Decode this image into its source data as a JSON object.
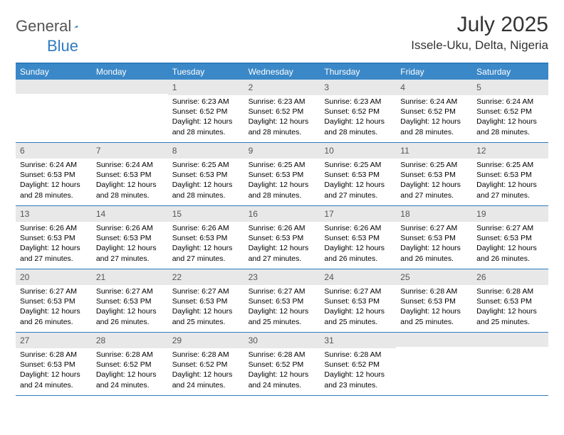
{
  "brand": {
    "general": "General",
    "blue": "Blue"
  },
  "title": "July 2025",
  "location": "Issele-Uku, Delta, Nigeria",
  "colors": {
    "header_bg": "#3b88c8",
    "border": "#2f7bbf",
    "daynum_bg": "#e8e8e8",
    "page_bg": "#ffffff",
    "text": "#000000",
    "title_color": "#333333",
    "logo_gray": "#545454",
    "logo_blue": "#2f7bbf"
  },
  "typography": {
    "title_fontsize": 30,
    "location_fontsize": 17,
    "dayheader_fontsize": 12,
    "cell_fontsize": 10.5
  },
  "dayNames": [
    "Sunday",
    "Monday",
    "Tuesday",
    "Wednesday",
    "Thursday",
    "Friday",
    "Saturday"
  ],
  "weeks": [
    [
      null,
      null,
      {
        "n": "1",
        "sr": "6:23 AM",
        "ss": "6:52 PM",
        "dl": "12 hours and 28 minutes."
      },
      {
        "n": "2",
        "sr": "6:23 AM",
        "ss": "6:52 PM",
        "dl": "12 hours and 28 minutes."
      },
      {
        "n": "3",
        "sr": "6:23 AM",
        "ss": "6:52 PM",
        "dl": "12 hours and 28 minutes."
      },
      {
        "n": "4",
        "sr": "6:24 AM",
        "ss": "6:52 PM",
        "dl": "12 hours and 28 minutes."
      },
      {
        "n": "5",
        "sr": "6:24 AM",
        "ss": "6:52 PM",
        "dl": "12 hours and 28 minutes."
      }
    ],
    [
      {
        "n": "6",
        "sr": "6:24 AM",
        "ss": "6:53 PM",
        "dl": "12 hours and 28 minutes."
      },
      {
        "n": "7",
        "sr": "6:24 AM",
        "ss": "6:53 PM",
        "dl": "12 hours and 28 minutes."
      },
      {
        "n": "8",
        "sr": "6:25 AM",
        "ss": "6:53 PM",
        "dl": "12 hours and 28 minutes."
      },
      {
        "n": "9",
        "sr": "6:25 AM",
        "ss": "6:53 PM",
        "dl": "12 hours and 28 minutes."
      },
      {
        "n": "10",
        "sr": "6:25 AM",
        "ss": "6:53 PM",
        "dl": "12 hours and 27 minutes."
      },
      {
        "n": "11",
        "sr": "6:25 AM",
        "ss": "6:53 PM",
        "dl": "12 hours and 27 minutes."
      },
      {
        "n": "12",
        "sr": "6:25 AM",
        "ss": "6:53 PM",
        "dl": "12 hours and 27 minutes."
      }
    ],
    [
      {
        "n": "13",
        "sr": "6:26 AM",
        "ss": "6:53 PM",
        "dl": "12 hours and 27 minutes."
      },
      {
        "n": "14",
        "sr": "6:26 AM",
        "ss": "6:53 PM",
        "dl": "12 hours and 27 minutes."
      },
      {
        "n": "15",
        "sr": "6:26 AM",
        "ss": "6:53 PM",
        "dl": "12 hours and 27 minutes."
      },
      {
        "n": "16",
        "sr": "6:26 AM",
        "ss": "6:53 PM",
        "dl": "12 hours and 27 minutes."
      },
      {
        "n": "17",
        "sr": "6:26 AM",
        "ss": "6:53 PM",
        "dl": "12 hours and 26 minutes."
      },
      {
        "n": "18",
        "sr": "6:27 AM",
        "ss": "6:53 PM",
        "dl": "12 hours and 26 minutes."
      },
      {
        "n": "19",
        "sr": "6:27 AM",
        "ss": "6:53 PM",
        "dl": "12 hours and 26 minutes."
      }
    ],
    [
      {
        "n": "20",
        "sr": "6:27 AM",
        "ss": "6:53 PM",
        "dl": "12 hours and 26 minutes."
      },
      {
        "n": "21",
        "sr": "6:27 AM",
        "ss": "6:53 PM",
        "dl": "12 hours and 26 minutes."
      },
      {
        "n": "22",
        "sr": "6:27 AM",
        "ss": "6:53 PM",
        "dl": "12 hours and 25 minutes."
      },
      {
        "n": "23",
        "sr": "6:27 AM",
        "ss": "6:53 PM",
        "dl": "12 hours and 25 minutes."
      },
      {
        "n": "24",
        "sr": "6:27 AM",
        "ss": "6:53 PM",
        "dl": "12 hours and 25 minutes."
      },
      {
        "n": "25",
        "sr": "6:28 AM",
        "ss": "6:53 PM",
        "dl": "12 hours and 25 minutes."
      },
      {
        "n": "26",
        "sr": "6:28 AM",
        "ss": "6:53 PM",
        "dl": "12 hours and 25 minutes."
      }
    ],
    [
      {
        "n": "27",
        "sr": "6:28 AM",
        "ss": "6:53 PM",
        "dl": "12 hours and 24 minutes."
      },
      {
        "n": "28",
        "sr": "6:28 AM",
        "ss": "6:52 PM",
        "dl": "12 hours and 24 minutes."
      },
      {
        "n": "29",
        "sr": "6:28 AM",
        "ss": "6:52 PM",
        "dl": "12 hours and 24 minutes."
      },
      {
        "n": "30",
        "sr": "6:28 AM",
        "ss": "6:52 PM",
        "dl": "12 hours and 24 minutes."
      },
      {
        "n": "31",
        "sr": "6:28 AM",
        "ss": "6:52 PM",
        "dl": "12 hours and 23 minutes."
      },
      null,
      null
    ]
  ],
  "labels": {
    "sunrise": "Sunrise:",
    "sunset": "Sunset:",
    "daylight": "Daylight:"
  }
}
